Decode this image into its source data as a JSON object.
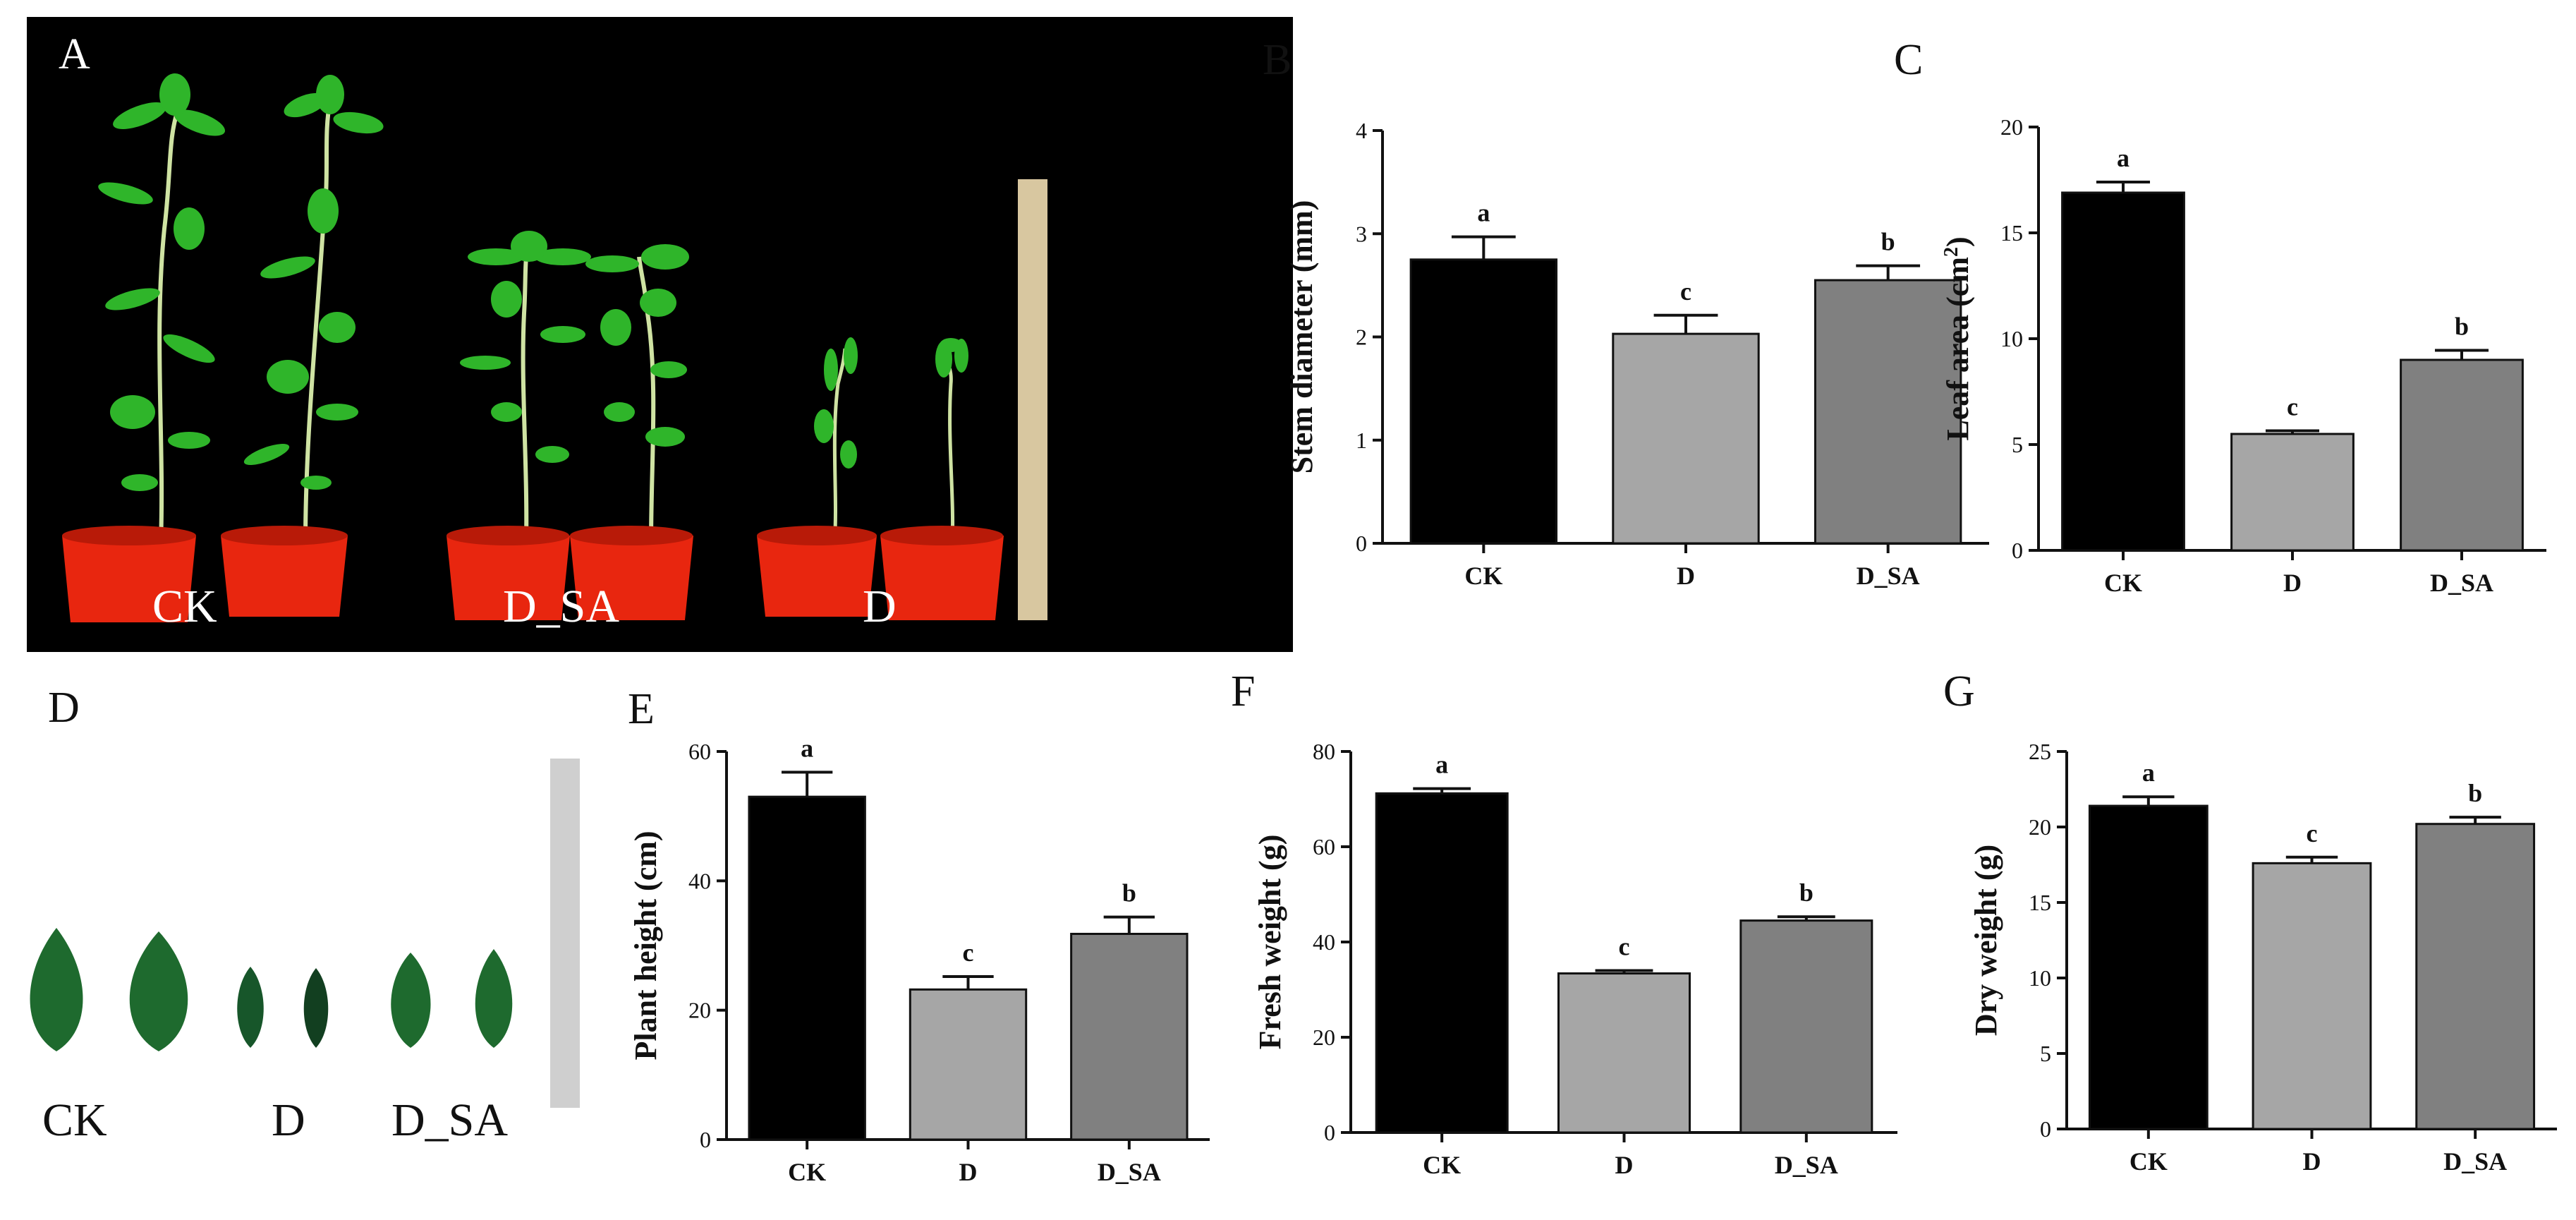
{
  "panels": {
    "A": "A",
    "B": "B",
    "C": "C",
    "D": "D",
    "E": "E",
    "F": "F",
    "G": "G"
  },
  "photo_a": {
    "labels": [
      "CK",
      "D_SA",
      "D"
    ],
    "colors": {
      "background": "#000000",
      "pot": "#e8260f",
      "leaf": "#2fb52a",
      "stem": "#cfe3a3",
      "ruler": "#d8c7a0"
    }
  },
  "photo_d": {
    "labels": [
      "CK",
      "D",
      "D_SA"
    ],
    "colors": {
      "leaf": "#1e6a2e",
      "ruler": "#cfcfcf"
    }
  },
  "chart_data": [
    {
      "type": "bar",
      "panel": "B",
      "categories": [
        "CK",
        "D",
        "D_SA"
      ],
      "values": [
        2.75,
        2.03,
        2.55
      ],
      "errors": [
        0.22,
        0.18,
        0.14
      ],
      "significance": [
        "a",
        "c",
        "b"
      ],
      "ylabel": "Stem diameter (mm)",
      "ylim": [
        0,
        4
      ],
      "yticks": [
        0,
        1,
        2,
        3,
        4
      ],
      "colors": [
        "#000000",
        "#a6a6a6",
        "#808080"
      ]
    },
    {
      "type": "bar",
      "panel": "C",
      "categories": [
        "CK",
        "D",
        "D_SA"
      ],
      "values": [
        16.9,
        5.5,
        9.0
      ],
      "errors": [
        0.5,
        0.15,
        0.45
      ],
      "significance": [
        "a",
        "c",
        "b"
      ],
      "ylabel": "Leaf area (cm",
      "ylabel_sup": "2",
      "ylabel_tail": ")",
      "ylim": [
        0,
        20
      ],
      "yticks": [
        0,
        5,
        10,
        15,
        20
      ],
      "colors": [
        "#000000",
        "#a6a6a6",
        "#808080"
      ]
    },
    {
      "type": "bar",
      "panel": "E",
      "categories": [
        "CK",
        "D",
        "D_SA"
      ],
      "values": [
        53,
        23.2,
        31.8
      ],
      "errors": [
        3.8,
        2.0,
        2.6
      ],
      "significance": [
        "a",
        "c",
        "b"
      ],
      "ylabel": "Plant height (cm)",
      "ylim": [
        0,
        60
      ],
      "yticks": [
        0,
        20,
        40,
        60
      ],
      "colors": [
        "#000000",
        "#a6a6a6",
        "#808080"
      ]
    },
    {
      "type": "bar",
      "panel": "F",
      "categories": [
        "CK",
        "D",
        "D_SA"
      ],
      "values": [
        71.2,
        33.4,
        44.5
      ],
      "errors": [
        1.0,
        0.6,
        0.8
      ],
      "significance": [
        "a",
        "c",
        "b"
      ],
      "ylabel": "Fresh weight (g)",
      "ylim": [
        0,
        80
      ],
      "yticks": [
        0,
        20,
        40,
        60,
        80
      ],
      "colors": [
        "#000000",
        "#a6a6a6",
        "#808080"
      ]
    },
    {
      "type": "bar",
      "panel": "G",
      "categories": [
        "CK",
        "D",
        "D_SA"
      ],
      "values": [
        21.4,
        17.6,
        20.2
      ],
      "errors": [
        0.6,
        0.4,
        0.45
      ],
      "significance": [
        "a",
        "c",
        "b"
      ],
      "ylabel": "Dry weight (g)",
      "ylim": [
        0,
        25
      ],
      "yticks": [
        0,
        5,
        10,
        15,
        20,
        25
      ],
      "colors": [
        "#000000",
        "#a6a6a6",
        "#808080"
      ]
    }
  ]
}
